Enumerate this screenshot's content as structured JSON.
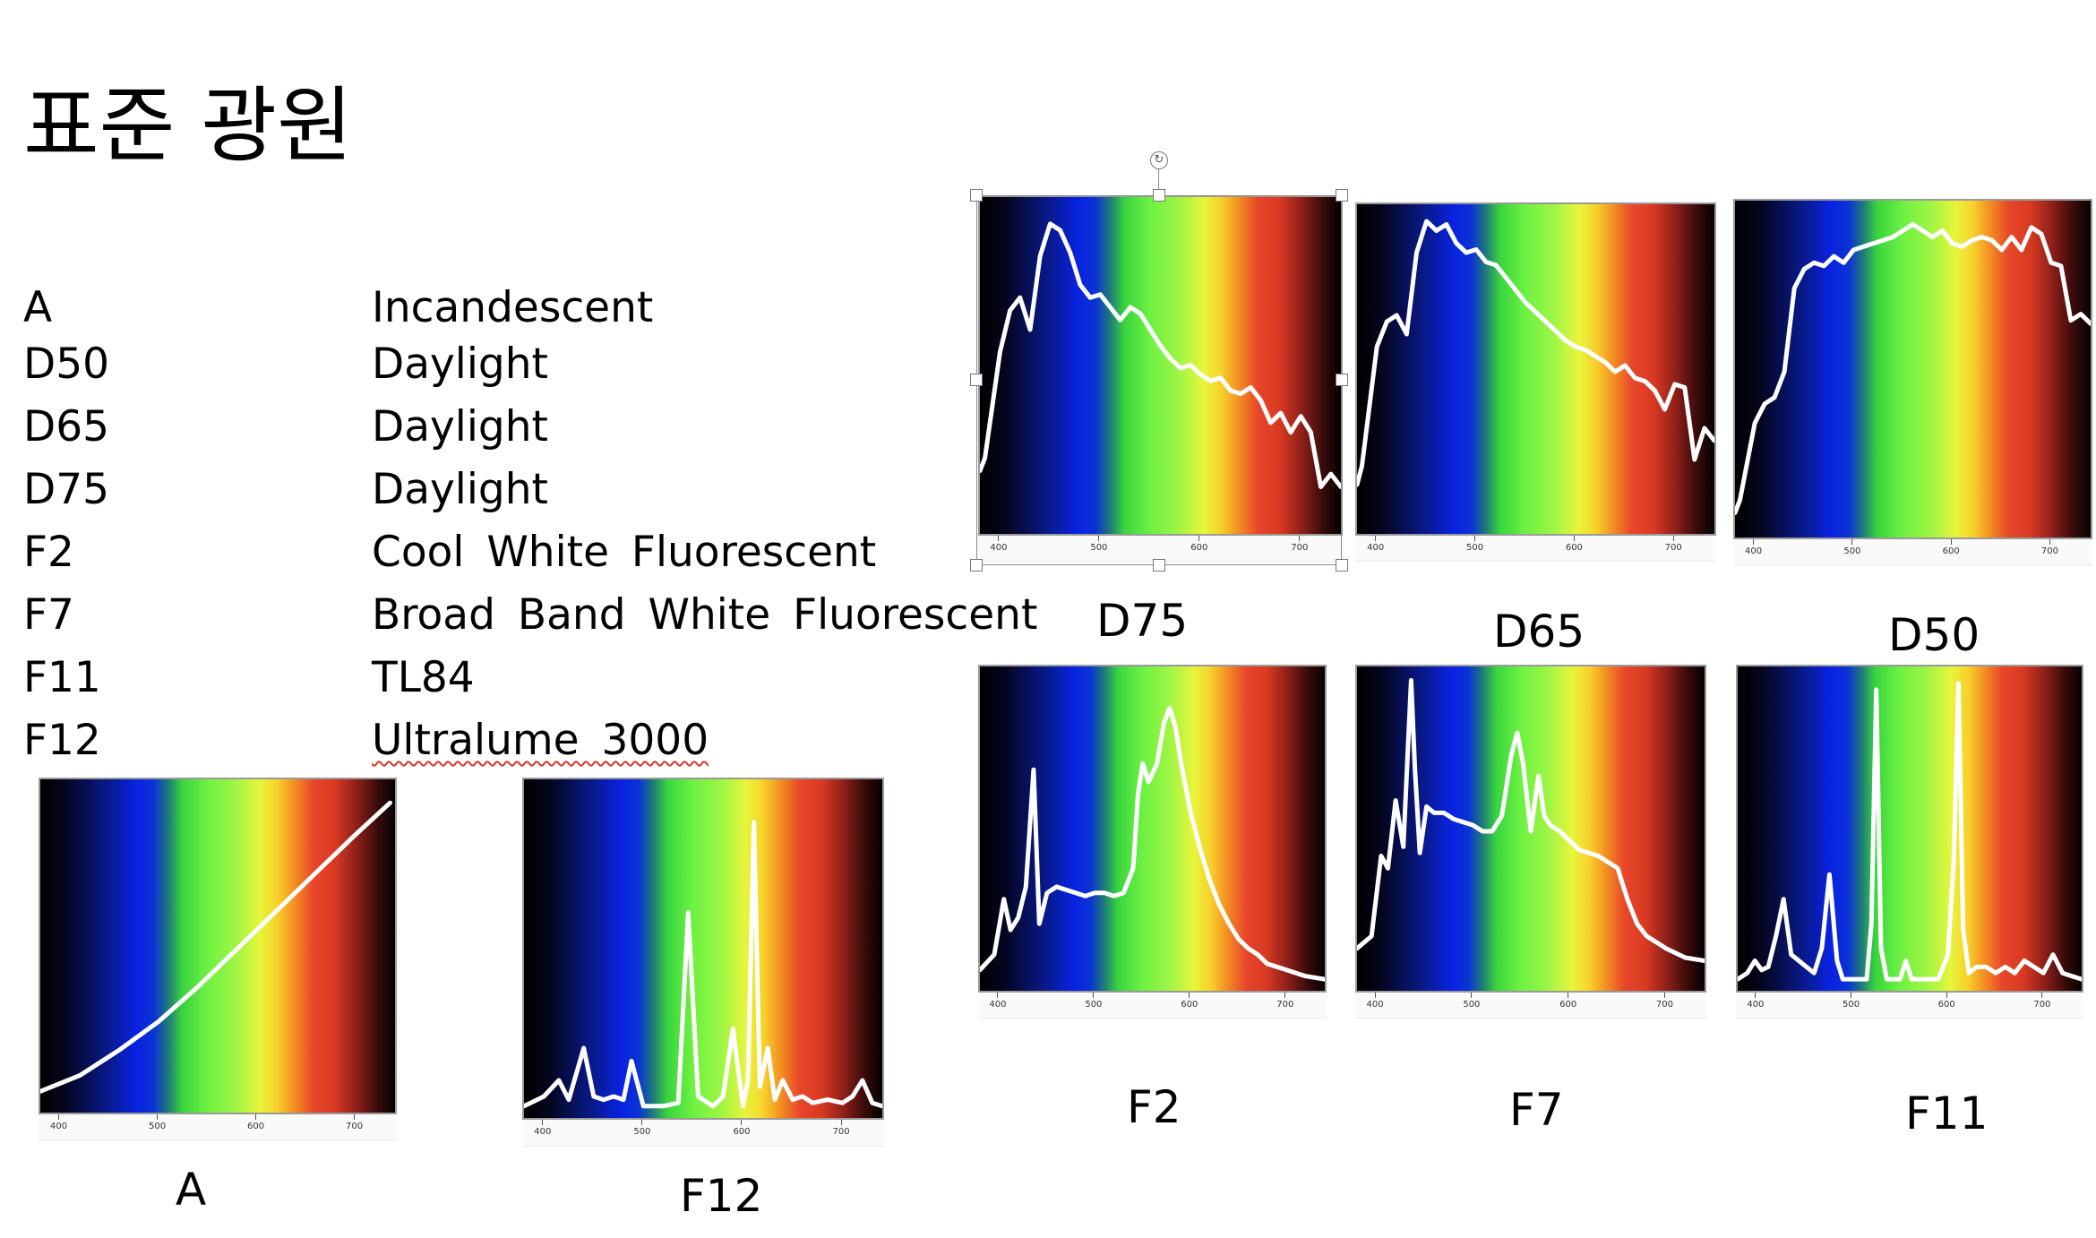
{
  "slide": {
    "title": "표준 광원",
    "illuminants": [
      {
        "code": "A",
        "description": "Incandescent"
      },
      {
        "code": "D50",
        "description": "Daylight"
      },
      {
        "code": "D65",
        "description": "Daylight"
      },
      {
        "code": "D75",
        "description": "Daylight"
      },
      {
        "code": "F2",
        "description": "Cool White Fluorescent"
      },
      {
        "code": "F7",
        "description": "Broad Band White Fluorescent"
      },
      {
        "code": "F11",
        "description": "TL84"
      },
      {
        "code": "F12",
        "description": "Ultralume 3000"
      }
    ]
  },
  "axis_ticks": [
    "400",
    "500",
    "600",
    "700"
  ],
  "chart_data": [
    {
      "type": "line",
      "caption": "A",
      "xlim": [
        380,
        740
      ],
      "ylim": [
        0,
        1
      ],
      "x": [
        380,
        420,
        460,
        500,
        540,
        580,
        620,
        660,
        700,
        735
      ],
      "y": [
        0.05,
        0.1,
        0.18,
        0.27,
        0.38,
        0.5,
        0.62,
        0.74,
        0.86,
        0.96
      ]
    },
    {
      "type": "line",
      "caption": "F12",
      "xlim": [
        380,
        740
      ],
      "ylim": [
        0,
        1
      ],
      "x": [
        380,
        400,
        415,
        425,
        440,
        450,
        460,
        470,
        480,
        488,
        500,
        520,
        535,
        545,
        555,
        570,
        580,
        590,
        600,
        605,
        611,
        617,
        625,
        632,
        640,
        650,
        660,
        670,
        685,
        700,
        710,
        720,
        730,
        740
      ],
      "y": [
        0.02,
        0.05,
        0.1,
        0.04,
        0.2,
        0.05,
        0.04,
        0.05,
        0.04,
        0.16,
        0.02,
        0.02,
        0.03,
        0.62,
        0.05,
        0.02,
        0.05,
        0.26,
        0.02,
        0.1,
        0.9,
        0.08,
        0.2,
        0.04,
        0.1,
        0.04,
        0.05,
        0.03,
        0.04,
        0.03,
        0.05,
        0.1,
        0.03,
        0.02
      ]
    },
    {
      "type": "line",
      "caption": "D75",
      "xlim": [
        380,
        740
      ],
      "ylim": [
        0,
        1
      ],
      "x": [
        380,
        385,
        400,
        410,
        420,
        430,
        440,
        450,
        460,
        470,
        480,
        490,
        500,
        510,
        520,
        530,
        540,
        550,
        560,
        570,
        580,
        590,
        600,
        610,
        620,
        630,
        640,
        650,
        660,
        670,
        680,
        690,
        700,
        710,
        720,
        730,
        740
      ],
      "y": [
        0.18,
        0.22,
        0.55,
        0.68,
        0.72,
        0.62,
        0.85,
        0.95,
        0.93,
        0.86,
        0.76,
        0.72,
        0.73,
        0.69,
        0.65,
        0.69,
        0.67,
        0.62,
        0.57,
        0.53,
        0.5,
        0.51,
        0.48,
        0.46,
        0.47,
        0.43,
        0.42,
        0.44,
        0.4,
        0.33,
        0.36,
        0.3,
        0.35,
        0.3,
        0.13,
        0.17,
        0.13
      ]
    },
    {
      "type": "line",
      "caption": "D65",
      "xlim": [
        380,
        740
      ],
      "ylim": [
        0,
        1
      ],
      "x": [
        380,
        385,
        400,
        410,
        420,
        430,
        440,
        450,
        460,
        470,
        480,
        490,
        500,
        510,
        520,
        530,
        540,
        550,
        560,
        570,
        580,
        590,
        600,
        610,
        620,
        630,
        640,
        650,
        660,
        670,
        680,
        690,
        700,
        710,
        720,
        730,
        740
      ],
      "y": [
        0.14,
        0.2,
        0.58,
        0.66,
        0.68,
        0.62,
        0.88,
        0.98,
        0.95,
        0.97,
        0.91,
        0.88,
        0.89,
        0.85,
        0.84,
        0.8,
        0.76,
        0.72,
        0.69,
        0.66,
        0.63,
        0.6,
        0.58,
        0.57,
        0.55,
        0.53,
        0.5,
        0.52,
        0.48,
        0.47,
        0.44,
        0.38,
        0.46,
        0.45,
        0.22,
        0.32,
        0.28
      ]
    },
    {
      "type": "line",
      "caption": "D50",
      "xlim": [
        380,
        740
      ],
      "ylim": [
        0,
        1
      ],
      "x": [
        380,
        385,
        400,
        410,
        420,
        430,
        440,
        450,
        460,
        470,
        480,
        490,
        500,
        510,
        520,
        530,
        540,
        550,
        560,
        570,
        580,
        590,
        600,
        610,
        620,
        630,
        640,
        650,
        660,
        670,
        680,
        690,
        700,
        710,
        720,
        730,
        740
      ],
      "y": [
        0.06,
        0.1,
        0.34,
        0.4,
        0.42,
        0.5,
        0.76,
        0.82,
        0.84,
        0.83,
        0.86,
        0.84,
        0.88,
        0.89,
        0.9,
        0.91,
        0.92,
        0.94,
        0.96,
        0.94,
        0.92,
        0.94,
        0.9,
        0.89,
        0.91,
        0.92,
        0.91,
        0.88,
        0.92,
        0.88,
        0.95,
        0.93,
        0.84,
        0.83,
        0.66,
        0.68,
        0.65
      ]
    },
    {
      "type": "line",
      "caption": "F2",
      "xlim": [
        380,
        740
      ],
      "ylim": [
        0,
        1
      ],
      "x": [
        380,
        395,
        405,
        412,
        420,
        428,
        436,
        442,
        450,
        460,
        470,
        480,
        490,
        500,
        510,
        520,
        530,
        540,
        545,
        550,
        556,
        565,
        572,
        578,
        584,
        590,
        600,
        610,
        620,
        630,
        640,
        650,
        660,
        670,
        680,
        700,
        720,
        740
      ],
      "y": [
        0.05,
        0.1,
        0.28,
        0.18,
        0.22,
        0.32,
        0.7,
        0.2,
        0.3,
        0.32,
        0.31,
        0.3,
        0.29,
        0.3,
        0.3,
        0.29,
        0.3,
        0.38,
        0.62,
        0.72,
        0.66,
        0.72,
        0.85,
        0.9,
        0.84,
        0.72,
        0.56,
        0.44,
        0.34,
        0.26,
        0.2,
        0.15,
        0.12,
        0.1,
        0.07,
        0.05,
        0.03,
        0.02
      ]
    },
    {
      "type": "line",
      "caption": "F7",
      "xlim": [
        380,
        740
      ],
      "ylim": [
        0,
        1
      ],
      "x": [
        380,
        395,
        405,
        412,
        420,
        428,
        436,
        440,
        445,
        452,
        460,
        470,
        480,
        490,
        500,
        510,
        520,
        530,
        540,
        546,
        552,
        560,
        568,
        574,
        580,
        590,
        600,
        610,
        620,
        630,
        640,
        650,
        660,
        670,
        680,
        700,
        720,
        740
      ],
      "y": [
        0.12,
        0.16,
        0.42,
        0.38,
        0.6,
        0.45,
        0.99,
        0.7,
        0.43,
        0.58,
        0.56,
        0.56,
        0.54,
        0.53,
        0.52,
        0.5,
        0.5,
        0.55,
        0.75,
        0.82,
        0.72,
        0.5,
        0.68,
        0.55,
        0.52,
        0.5,
        0.47,
        0.44,
        0.43,
        0.42,
        0.4,
        0.38,
        0.28,
        0.2,
        0.16,
        0.12,
        0.09,
        0.08
      ]
    },
    {
      "type": "line",
      "caption": "F11",
      "xlim": [
        380,
        740
      ],
      "ylim": [
        0,
        1
      ],
      "x": [
        380,
        390,
        398,
        405,
        412,
        420,
        428,
        436,
        444,
        452,
        460,
        468,
        476,
        484,
        490,
        495,
        500,
        505,
        510,
        515,
        520,
        525,
        530,
        536,
        542,
        546,
        550,
        556,
        562,
        570,
        580,
        590,
        600,
        606,
        611,
        616,
        622,
        630,
        640,
        650,
        660,
        670,
        680,
        690,
        700,
        710,
        720,
        730,
        740
      ],
      "y": [
        0.02,
        0.04,
        0.08,
        0.05,
        0.06,
        0.16,
        0.28,
        0.1,
        0.08,
        0.06,
        0.04,
        0.12,
        0.36,
        0.08,
        0.02,
        0.02,
        0.02,
        0.02,
        0.02,
        0.02,
        0.2,
        0.96,
        0.12,
        0.02,
        0.02,
        0.02,
        0.02,
        0.08,
        0.02,
        0.02,
        0.02,
        0.02,
        0.1,
        0.4,
        0.98,
        0.18,
        0.04,
        0.06,
        0.06,
        0.04,
        0.06,
        0.04,
        0.08,
        0.06,
        0.04,
        0.1,
        0.04,
        0.03,
        0.02
      ]
    }
  ]
}
